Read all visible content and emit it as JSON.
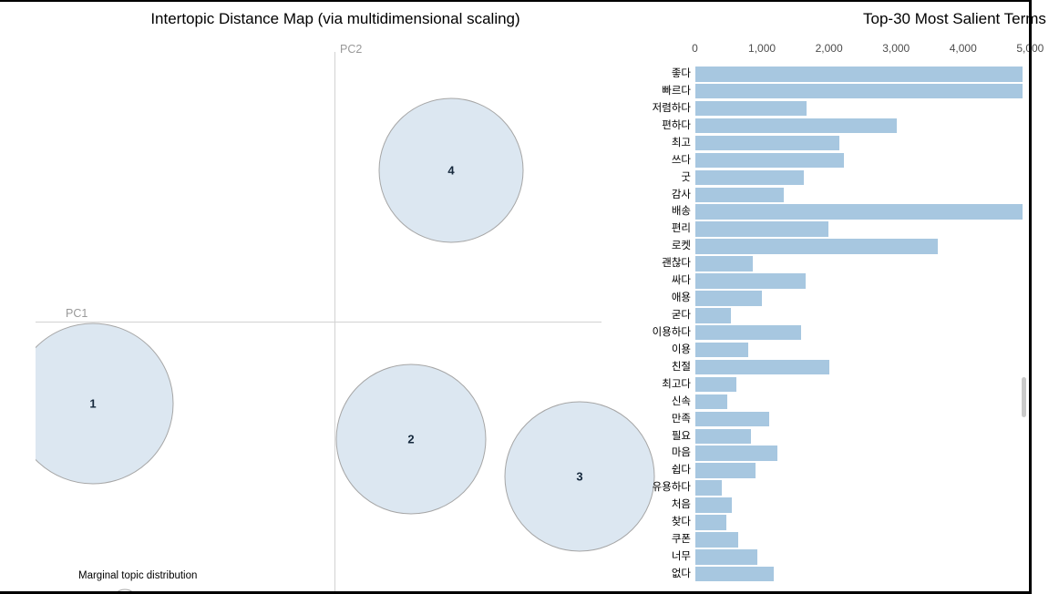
{
  "colors": {
    "bar_fill": "#a7c7e0",
    "topic_fill": "#dce7f1",
    "topic_stroke": "#a6a6a6",
    "axis_line": "#d2d2d2",
    "tick_text": "#4d4d4d",
    "axis_label_text": "#999999"
  },
  "chart_data": [
    {
      "type": "scatter",
      "title": "Intertopic Distance Map (via multidimensional scaling)",
      "xlabel": "PC1",
      "ylabel": "PC2",
      "legend": "Marginal topic distribution",
      "topics": [
        {
          "label": "1",
          "cx": 102,
          "cy": 443,
          "r": 88
        },
        {
          "label": "2",
          "cx": 451,
          "cy": 482,
          "r": 82
        },
        {
          "label": "3",
          "cx": 636,
          "cy": 523,
          "r": 82
        },
        {
          "label": "4",
          "cx": 495,
          "cy": 187,
          "r": 79
        }
      ]
    },
    {
      "type": "bar",
      "title": "Top-30 Most Salient Terms",
      "orientation": "horizontal",
      "xlim": [
        0,
        5000
      ],
      "x_ticks": [
        "0",
        "1,000",
        "2,000",
        "3,000",
        "4,000",
        "5,000"
      ],
      "categories": [
        "좋다",
        "빠르다",
        "저렴하다",
        "편하다",
        "최고",
        "쓰다",
        "굿",
        "감사",
        "배송",
        "편리",
        "로켓",
        "괜찮다",
        "싸다",
        "애용",
        "굳다",
        "이용하다",
        "이용",
        "친절",
        "최고다",
        "신속",
        "만족",
        "필요",
        "마음",
        "쉽다",
        "유용하다",
        "처음",
        "찾다",
        "쿠폰",
        "너무",
        "없다"
      ],
      "values": [
        4880,
        4880,
        1660,
        3000,
        2150,
        2220,
        1620,
        1320,
        4880,
        1990,
        3620,
        860,
        1650,
        990,
        530,
        1580,
        790,
        2000,
        610,
        480,
        1100,
        830,
        1220,
        900,
        400,
        540,
        460,
        640,
        930,
        1170
      ]
    }
  ]
}
